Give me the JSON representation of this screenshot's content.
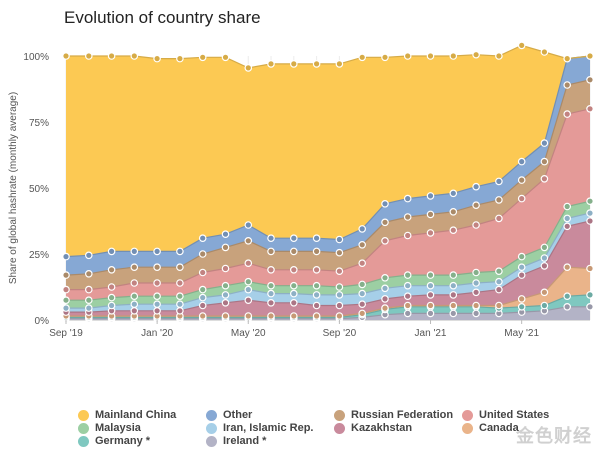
{
  "title": "Evolution of country share",
  "watermark": "金色财经",
  "chart_data": {
    "type": "area",
    "stacked": true,
    "x": [
      "2019-09",
      "2019-10",
      "2019-11",
      "2019-12",
      "2020-01",
      "2020-02",
      "2020-03",
      "2020-04",
      "2020-05",
      "2020-06",
      "2020-07",
      "2020-08",
      "2020-09",
      "2020-10",
      "2020-11",
      "2020-12",
      "2021-01",
      "2021-02",
      "2021-03",
      "2021-04",
      "2021-05",
      "2021-06",
      "2021-07",
      "2021-08"
    ],
    "x_ticks": [
      "Sep '19",
      "Jan '20",
      "May '20",
      "Sep '20",
      "Jan '21",
      "May '21"
    ],
    "x_tick_index": [
      0,
      4,
      8,
      12,
      16,
      20
    ],
    "ylabel": "Share of global hashrate (monthly average)",
    "y_ticks": [
      "0%",
      "25%",
      "50%",
      "75%",
      "100%"
    ],
    "ylim": [
      0,
      100
    ],
    "grid": "vertical",
    "legend_position": "bottom",
    "series": [
      {
        "name": "Ireland",
        "legend_label": "Ireland *",
        "color": "#b3b3c6",
        "values": [
          0.5,
          0.5,
          0.5,
          0.5,
          0.5,
          0.5,
          0.5,
          0.5,
          0.5,
          0.5,
          0.5,
          0.5,
          0.5,
          1,
          2,
          2.5,
          2.5,
          2.5,
          2.5,
          2.5,
          3,
          3.5,
          5,
          5
        ]
      },
      {
        "name": "Germany",
        "legend_label": "Germany *",
        "color": "#7fc8c0",
        "values": [
          0.5,
          0.5,
          0.5,
          0.5,
          0.5,
          0.5,
          0.5,
          0.5,
          0.5,
          0.5,
          0.5,
          0.5,
          0.5,
          1,
          2,
          2.5,
          2.5,
          2.5,
          2.5,
          2,
          2,
          2,
          4,
          4.5
        ]
      },
      {
        "name": "Canada",
        "legend_label": "Canada",
        "color": "#eab48a",
        "values": [
          0.5,
          0.5,
          0.5,
          0.5,
          0.5,
          0.5,
          0.5,
          0.5,
          0.5,
          0.5,
          0.5,
          0.5,
          0.5,
          0.5,
          0.5,
          0.5,
          0.5,
          0.5,
          0.5,
          1,
          3,
          5,
          11,
          10
        ]
      },
      {
        "name": "Kazakhstan",
        "legend_label": "Kazakhstan",
        "color": "#c98a9c",
        "values": [
          1.5,
          1.5,
          2,
          2,
          2,
          2,
          4,
          5,
          6,
          5,
          5,
          4,
          4,
          3.5,
          3.5,
          3.5,
          4,
          4,
          5,
          6,
          9,
          10,
          15.5,
          18
        ]
      },
      {
        "name": "Iran, Islamic Rep.",
        "legend_label": "Iran, Islamic Rep.",
        "color": "#a6cfe8",
        "values": [
          1.5,
          1.5,
          2,
          2.5,
          2.5,
          2.5,
          3,
          3,
          4,
          3.5,
          3.5,
          4,
          4,
          4,
          4,
          4,
          3.5,
          3.5,
          3.5,
          3,
          3,
          3,
          3,
          3
        ]
      },
      {
        "name": "Malaysia",
        "legend_label": "Malaysia",
        "color": "#9ccfa3",
        "values": [
          3,
          3,
          3,
          3,
          3,
          3,
          3,
          3.5,
          3,
          3,
          3,
          3.5,
          3,
          3.5,
          4,
          4,
          4,
          4,
          4,
          4,
          4,
          4,
          4.5,
          4.5
        ]
      },
      {
        "name": "United States",
        "legend_label": "United States",
        "color": "#e49a98",
        "values": [
          4,
          4,
          4,
          5,
          5,
          5,
          6.5,
          6.5,
          7,
          6,
          6,
          6,
          6,
          8,
          14,
          15,
          16,
          17,
          18,
          20,
          22,
          26,
          35,
          35
        ]
      },
      {
        "name": "Russian Federation",
        "legend_label": "Russian Federation",
        "color": "#c8a27c",
        "values": [
          5.5,
          6,
          6.5,
          6,
          6,
          6,
          7,
          8,
          8.5,
          7,
          7,
          7,
          7,
          7,
          7,
          7,
          7,
          7,
          7.5,
          7,
          7,
          6.5,
          11,
          11
        ]
      },
      {
        "name": "Other",
        "legend_label": "Other",
        "color": "#86a8d4",
        "values": [
          7,
          7,
          7,
          6,
          6,
          6,
          6,
          5,
          6,
          5,
          5,
          5,
          5,
          6,
          7,
          7,
          7,
          7,
          7,
          7,
          7,
          7,
          10,
          9
        ]
      },
      {
        "name": "Mainland China",
        "legend_label": "Mainland China",
        "color": "#fcc953",
        "values": [
          76,
          75.5,
          74,
          74,
          73,
          73,
          68.5,
          67,
          59.5,
          66,
          66,
          66,
          66.5,
          65,
          55.5,
          54,
          53,
          52,
          50,
          47.5,
          44,
          34.5,
          0,
          0
        ]
      }
    ]
  }
}
